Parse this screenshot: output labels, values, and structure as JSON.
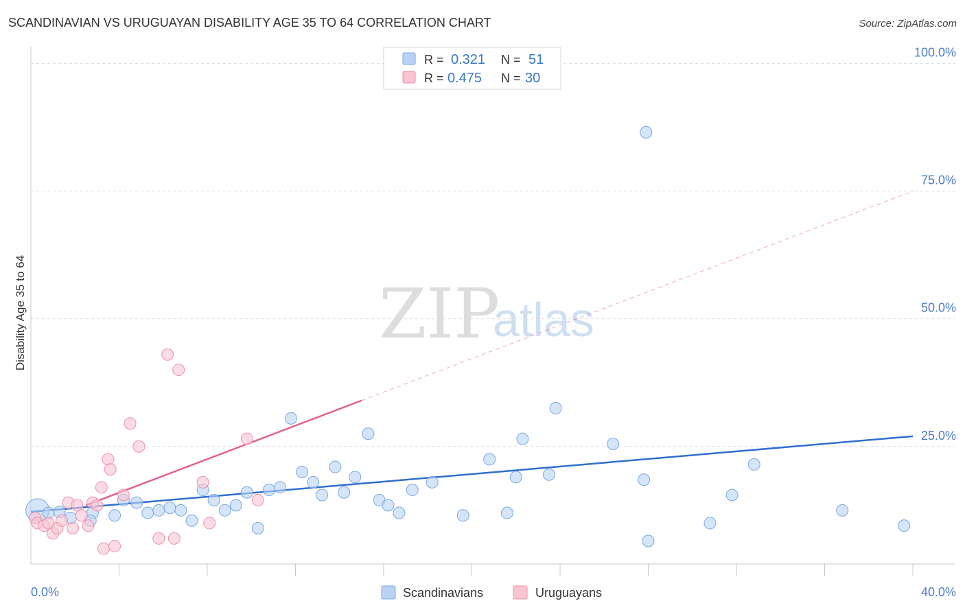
{
  "title": "SCANDINAVIAN VS URUGUAYAN DISABILITY AGE 35 TO 64 CORRELATION CHART",
  "source": "Source: ZipAtlas.com",
  "watermark": {
    "zip": "ZIP",
    "atlas": "atlas"
  },
  "colors": {
    "scandinavian_fill": "#b9d3f4",
    "scandinavian_stroke": "#7ba7e0",
    "scandinavian_line": "#2f6fcf",
    "uruguayan_fill": "#f9c4d3",
    "uruguayan_stroke": "#ee8fab",
    "uruguayan_line": "#e0618e",
    "tick_text": "#4a7cc7",
    "grid": "#dcdcdc"
  },
  "stats": [
    {
      "r_label": "R =",
      "r_value": "0.321",
      "n_label": "N =",
      "n_value": "51"
    },
    {
      "r_label": "R =",
      "r_value": "0.475",
      "n_label": "N =",
      "n_value": "30"
    }
  ],
  "chart_data": {
    "type": "scatter",
    "title": "SCANDINAVIAN VS URUGUAYAN DISABILITY AGE 35 TO 64 CORRELATION CHART",
    "xlabel": "",
    "ylabel": "Disability Age 35 to 64",
    "xlim": [
      0,
      40
    ],
    "ylim": [
      2,
      103
    ],
    "x_tick_labels": [
      "0.0%",
      "40.0%"
    ],
    "y_ticks": [
      25,
      50,
      75,
      100
    ],
    "y_tick_labels": [
      "25.0%",
      "50.0%",
      "75.0%",
      "100.0%"
    ],
    "legend_position": "bottom-center",
    "series": [
      {
        "name": "Scandinavians",
        "points": [
          [
            0.3,
            12.5
          ],
          [
            0.8,
            12.0
          ],
          [
            1.3,
            12.2
          ],
          [
            1.8,
            11.0
          ],
          [
            2.8,
            12.0
          ],
          [
            2.7,
            10.5
          ],
          [
            3.8,
            11.5
          ],
          [
            4.2,
            14.5
          ],
          [
            4.8,
            14.0
          ],
          [
            5.3,
            12.0
          ],
          [
            5.8,
            12.5
          ],
          [
            6.3,
            13.0
          ],
          [
            6.8,
            12.5
          ],
          [
            7.3,
            10.5
          ],
          [
            7.8,
            16.5
          ],
          [
            8.3,
            14.5
          ],
          [
            8.8,
            12.5
          ],
          [
            9.3,
            13.5
          ],
          [
            9.8,
            16.0
          ],
          [
            10.3,
            9.0
          ],
          [
            10.8,
            16.5
          ],
          [
            11.3,
            17.0
          ],
          [
            11.8,
            30.5
          ],
          [
            12.3,
            20.0
          ],
          [
            12.8,
            18.0
          ],
          [
            13.2,
            15.5
          ],
          [
            13.8,
            21.0
          ],
          [
            14.2,
            16.0
          ],
          [
            14.7,
            19.0
          ],
          [
            15.3,
            27.5
          ],
          [
            15.8,
            14.5
          ],
          [
            16.2,
            13.5
          ],
          [
            16.7,
            12.0
          ],
          [
            17.3,
            16.5
          ],
          [
            18.2,
            18.0
          ],
          [
            19.6,
            11.5
          ],
          [
            20.8,
            22.5
          ],
          [
            21.6,
            12.0
          ],
          [
            22.3,
            26.5
          ],
          [
            22.0,
            19.0
          ],
          [
            23.5,
            19.5
          ],
          [
            23.8,
            32.5
          ],
          [
            27.9,
            86.5
          ],
          [
            26.4,
            25.5
          ],
          [
            27.8,
            18.5
          ],
          [
            28.0,
            6.5
          ],
          [
            30.8,
            10.0
          ],
          [
            31.8,
            15.5
          ],
          [
            32.8,
            21.5
          ],
          [
            36.8,
            12.5
          ],
          [
            39.6,
            9.5
          ]
        ]
      },
      {
        "name": "Uruguayans",
        "points": [
          [
            0.2,
            11.0
          ],
          [
            0.3,
            10.0
          ],
          [
            0.6,
            9.5
          ],
          [
            0.8,
            10.0
          ],
          [
            1.0,
            8.0
          ],
          [
            1.2,
            9.0
          ],
          [
            1.4,
            10.5
          ],
          [
            1.7,
            14.0
          ],
          [
            1.9,
            9.0
          ],
          [
            2.1,
            13.5
          ],
          [
            2.3,
            11.5
          ],
          [
            2.6,
            9.5
          ],
          [
            2.8,
            14.0
          ],
          [
            3.0,
            13.5
          ],
          [
            3.2,
            17.0
          ],
          [
            3.3,
            5.0
          ],
          [
            3.5,
            22.5
          ],
          [
            3.6,
            20.5
          ],
          [
            3.8,
            5.5
          ],
          [
            4.2,
            15.5
          ],
          [
            4.5,
            29.5
          ],
          [
            4.9,
            25.0
          ],
          [
            5.8,
            7.0
          ],
          [
            6.2,
            43.0
          ],
          [
            6.7,
            40.0
          ],
          [
            6.5,
            7.0
          ],
          [
            7.8,
            18.0
          ],
          [
            8.1,
            10.0
          ],
          [
            9.8,
            26.5
          ],
          [
            10.3,
            14.5
          ]
        ]
      }
    ],
    "trend_lines": [
      {
        "series": "Scandinavians",
        "x": [
          0,
          40
        ],
        "y": [
          12.2,
          27.0
        ],
        "style": "solid"
      },
      {
        "series": "Uruguayans",
        "x": [
          2.5,
          15.0
        ],
        "y": [
          13.5,
          34.0
        ],
        "style": "solid"
      },
      {
        "series": "Uruguayans",
        "x": [
          15.0,
          40.0
        ],
        "y": [
          34.0,
          75.0
        ],
        "style": "dashed"
      }
    ]
  }
}
